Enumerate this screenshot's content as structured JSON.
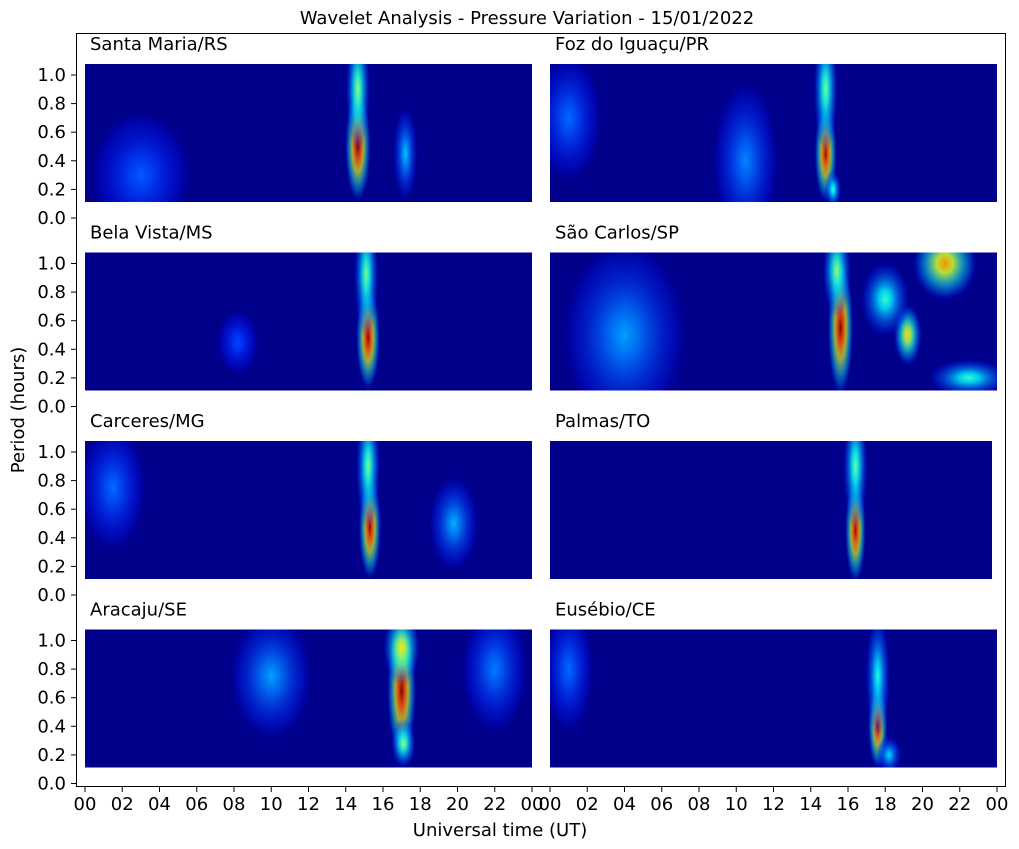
{
  "chart_data": {
    "type": "heatmap",
    "title": "Wavelet Analysis - Pressure Variation - 15/01/2022",
    "xlabel": "Universal time (UT)",
    "ylabel": "Period (hours)",
    "xlim": [
      0,
      24
    ],
    "ylim": [
      0,
      1.07
    ],
    "colormap": "jet",
    "background_color": "#00008b",
    "x_tick_labels": [
      "00",
      "02",
      "04",
      "06",
      "08",
      "10",
      "12",
      "14",
      "16",
      "18",
      "20",
      "22",
      "00"
    ],
    "y_tick_labels": [
      "0.0",
      "0.2",
      "0.4",
      "0.6",
      "0.8",
      "1.0"
    ],
    "panels": [
      {
        "station": "Santa Maria/RS",
        "hotspots": [
          {
            "t": 14.65,
            "period": 0.5,
            "power": 1.0,
            "sigma_t": 0.32,
            "sigma_p": 0.18
          },
          {
            "t": 14.65,
            "period": 0.9,
            "power": 0.45,
            "sigma_t": 0.3,
            "sigma_p": 0.2
          },
          {
            "t": 17.2,
            "period": 0.45,
            "power": 0.22,
            "sigma_t": 0.3,
            "sigma_p": 0.15
          },
          {
            "t": 3.0,
            "period": 0.3,
            "power": 0.1,
            "sigma_t": 1.2,
            "sigma_p": 0.2
          }
        ]
      },
      {
        "station": "Foz do Iguaçu/PR",
        "hotspots": [
          {
            "t": 14.8,
            "period": 0.45,
            "power": 0.95,
            "sigma_t": 0.28,
            "sigma_p": 0.16
          },
          {
            "t": 14.8,
            "period": 0.9,
            "power": 0.42,
            "sigma_t": 0.3,
            "sigma_p": 0.2
          },
          {
            "t": 15.2,
            "period": 0.2,
            "power": 0.35,
            "sigma_t": 0.2,
            "sigma_p": 0.06
          },
          {
            "t": 10.5,
            "period": 0.4,
            "power": 0.15,
            "sigma_t": 0.8,
            "sigma_p": 0.25
          },
          {
            "t": 1.0,
            "period": 0.7,
            "power": 0.12,
            "sigma_t": 0.8,
            "sigma_p": 0.2
          }
        ]
      },
      {
        "station": "Bela Vista/MS",
        "hotspots": [
          {
            "t": 15.2,
            "period": 0.48,
            "power": 0.98,
            "sigma_t": 0.3,
            "sigma_p": 0.17
          },
          {
            "t": 15.1,
            "period": 0.92,
            "power": 0.42,
            "sigma_t": 0.3,
            "sigma_p": 0.2
          },
          {
            "t": 8.2,
            "period": 0.45,
            "power": 0.08,
            "sigma_t": 0.5,
            "sigma_p": 0.1
          }
        ]
      },
      {
        "station": "São Carlos/SP",
        "hotspots": [
          {
            "t": 15.6,
            "period": 0.55,
            "power": 1.0,
            "sigma_t": 0.32,
            "sigma_p": 0.22
          },
          {
            "t": 15.4,
            "period": 0.95,
            "power": 0.45,
            "sigma_t": 0.35,
            "sigma_p": 0.15
          },
          {
            "t": 19.2,
            "period": 0.5,
            "power": 0.62,
            "sigma_t": 0.35,
            "sigma_p": 0.1
          },
          {
            "t": 21.2,
            "period": 1.0,
            "power": 0.7,
            "sigma_t": 0.8,
            "sigma_p": 0.12
          },
          {
            "t": 18.0,
            "period": 0.75,
            "power": 0.35,
            "sigma_t": 0.6,
            "sigma_p": 0.12
          },
          {
            "t": 22.5,
            "period": 0.2,
            "power": 0.35,
            "sigma_t": 1.0,
            "sigma_p": 0.06
          },
          {
            "t": 4.0,
            "period": 0.5,
            "power": 0.18,
            "sigma_t": 1.5,
            "sigma_p": 0.3
          }
        ]
      },
      {
        "station": "Carceres/MG",
        "hotspots": [
          {
            "t": 15.3,
            "period": 0.47,
            "power": 0.97,
            "sigma_t": 0.28,
            "sigma_p": 0.17
          },
          {
            "t": 15.2,
            "period": 0.9,
            "power": 0.42,
            "sigma_t": 0.3,
            "sigma_p": 0.2
          },
          {
            "t": 19.8,
            "period": 0.5,
            "power": 0.2,
            "sigma_t": 0.6,
            "sigma_p": 0.15
          },
          {
            "t": 1.5,
            "period": 0.75,
            "power": 0.12,
            "sigma_t": 0.8,
            "sigma_p": 0.2
          }
        ]
      },
      {
        "station": "Palmas/TO",
        "hotspots": [
          {
            "t": 16.4,
            "period": 0.45,
            "power": 0.96,
            "sigma_t": 0.26,
            "sigma_p": 0.17
          },
          {
            "t": 16.4,
            "period": 0.9,
            "power": 0.4,
            "sigma_t": 0.3,
            "sigma_p": 0.2
          }
        ]
      },
      {
        "station": "Aracaju/SE",
        "hotspots": [
          {
            "t": 17.0,
            "period": 0.65,
            "power": 1.0,
            "sigma_t": 0.36,
            "sigma_p": 0.22
          },
          {
            "t": 17.0,
            "period": 0.95,
            "power": 0.6,
            "sigma_t": 0.45,
            "sigma_p": 0.12
          },
          {
            "t": 17.1,
            "period": 0.28,
            "power": 0.45,
            "sigma_t": 0.3,
            "sigma_p": 0.08
          },
          {
            "t": 10.0,
            "period": 0.75,
            "power": 0.18,
            "sigma_t": 1.0,
            "sigma_p": 0.2
          },
          {
            "t": 22.0,
            "period": 0.8,
            "power": 0.14,
            "sigma_t": 0.8,
            "sigma_p": 0.2
          }
        ]
      },
      {
        "station": "Eusébio/CE",
        "hotspots": [
          {
            "t": 17.6,
            "period": 0.4,
            "power": 0.95,
            "sigma_t": 0.24,
            "sigma_p": 0.14
          },
          {
            "t": 17.6,
            "period": 0.75,
            "power": 0.32,
            "sigma_t": 0.3,
            "sigma_p": 0.2
          },
          {
            "t": 18.2,
            "period": 0.2,
            "power": 0.25,
            "sigma_t": 0.3,
            "sigma_p": 0.06
          },
          {
            "t": 1.0,
            "period": 0.8,
            "power": 0.12,
            "sigma_t": 0.6,
            "sigma_p": 0.2
          }
        ]
      }
    ]
  }
}
